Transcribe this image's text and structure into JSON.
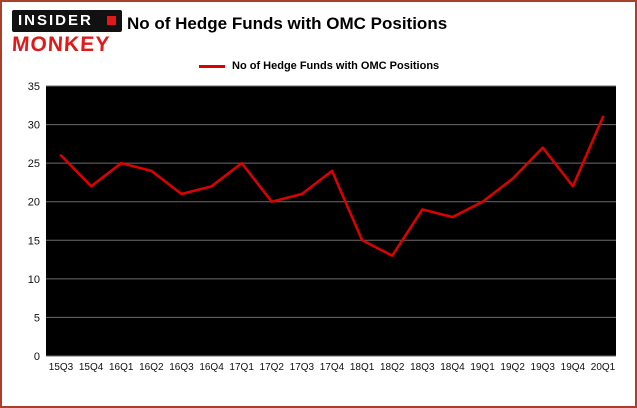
{
  "logo": {
    "line1": "INSIDER",
    "line2": "MONKEY"
  },
  "header": {
    "title": "No of Hedge Funds with OMC Positions"
  },
  "legend": {
    "label": "No of Hedge Funds with OMC Positions"
  },
  "colors": {
    "line": "#dd0000",
    "plot_background": "#000000",
    "grid": "#6b6b6b",
    "frame_border": "#a8402c",
    "logo_red": "#e01a1a"
  },
  "chart_data": {
    "type": "line",
    "title": "No of Hedge Funds with OMC Positions",
    "categories": [
      "15Q3",
      "15Q4",
      "16Q1",
      "16Q2",
      "16Q3",
      "16Q4",
      "17Q1",
      "17Q2",
      "17Q3",
      "17Q4",
      "18Q1",
      "18Q2",
      "18Q3",
      "18Q4",
      "19Q1",
      "19Q2",
      "19Q3",
      "19Q4",
      "20Q1"
    ],
    "values": [
      26,
      22,
      25,
      24,
      21,
      22,
      25,
      20,
      21,
      24,
      15,
      13,
      19,
      18,
      20,
      23,
      27,
      22,
      31
    ],
    "xlabel": "",
    "ylabel": "",
    "ylim": [
      0,
      35
    ],
    "yticks": [
      0,
      5,
      10,
      15,
      20,
      25,
      30,
      35
    ],
    "grid": true,
    "legend_position": "top-left",
    "legend_entries": [
      "No of Hedge Funds with OMC Positions"
    ]
  }
}
